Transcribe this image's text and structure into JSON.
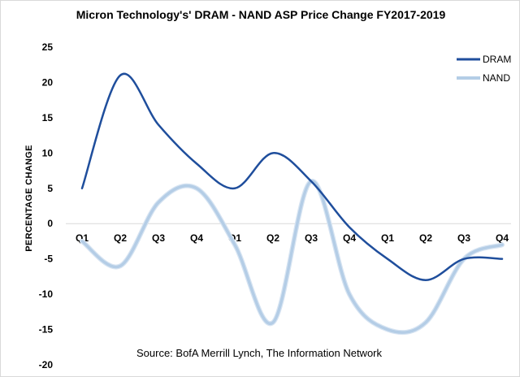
{
  "chart_data": {
    "type": "line",
    "title": "Micron Technology's' DRAM - NAND ASP Price Change FY2017-2019",
    "ylabel": "PERCENTAGE CHANGE",
    "xlabel": "",
    "categories": [
      "Q1",
      "Q2",
      "Q3",
      "Q4",
      "Q1",
      "Q2",
      "Q3",
      "Q4",
      "Q1",
      "Q2",
      "Q3",
      "Q4"
    ],
    "ylim": [
      -20,
      25
    ],
    "yticks": [
      -20,
      -15,
      -10,
      -5,
      0,
      5,
      10,
      15,
      20,
      25
    ],
    "series": [
      {
        "name": "DRAM",
        "color": "#1f4e9c",
        "values": [
          5,
          21,
          14,
          8.5,
          5,
          10,
          6,
          -0.5,
          -5,
          -8,
          -5,
          -5
        ]
      },
      {
        "name": "NAND",
        "color": "#b4cde6",
        "values": [
          -2.5,
          -6,
          3,
          5,
          -3,
          -14,
          6,
          -10,
          -15,
          -14,
          -5,
          -3
        ]
      }
    ],
    "legend_position": "top-right",
    "grid": false,
    "annotation": "Source: BofA Merrill Lynch, The Information Network"
  }
}
